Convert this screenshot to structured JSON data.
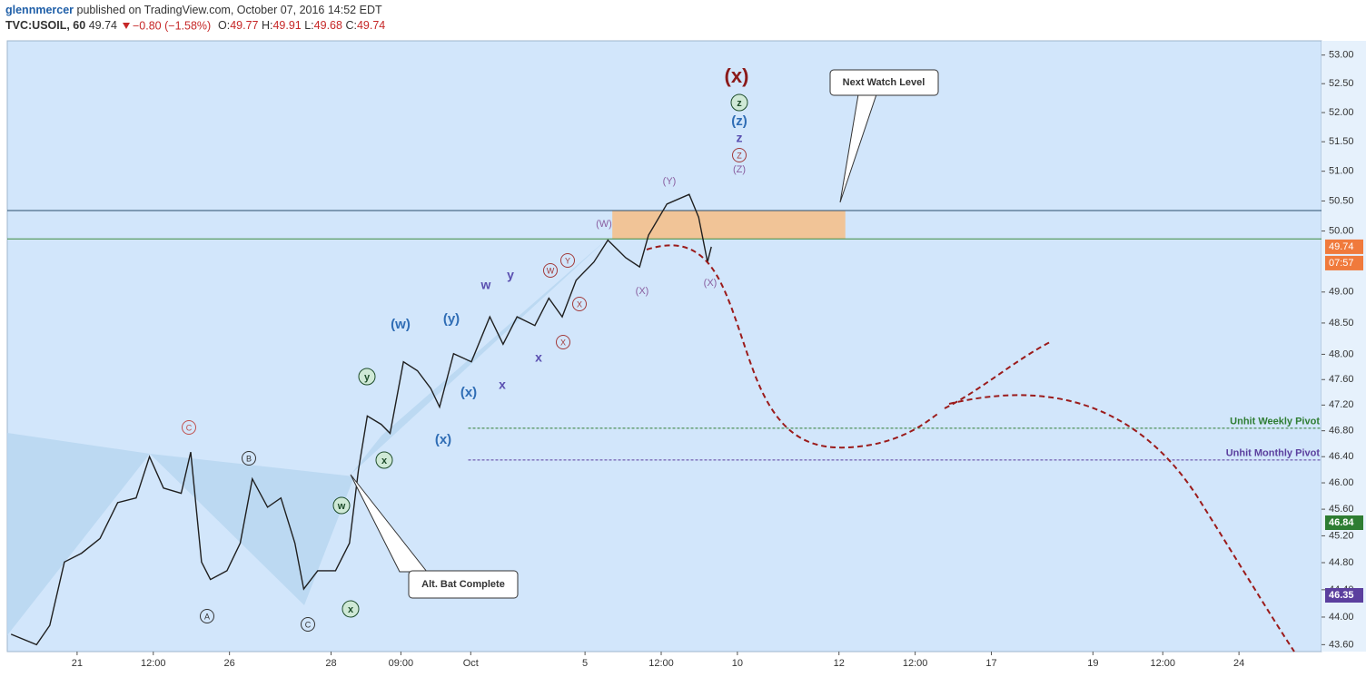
{
  "header": {
    "author": "glennmercer",
    "published": "published on TradingView.com, October 07, 2016 14:52 EDT",
    "symbol": "TVC:USOIL, 60",
    "last": "49.74",
    "change": "−0.80 (−1.58%)",
    "ohlc": [
      {
        "label": "O:",
        "value": "49.77"
      },
      {
        "label": "H:",
        "value": "49.91"
      },
      {
        "label": "L:",
        "value": "49.68"
      },
      {
        "label": "C:",
        "value": "49.74"
      }
    ]
  },
  "chart_data": {
    "type": "line",
    "log_scale": true,
    "color": "#1f1f1f",
    "x": [
      0.6,
      4.6,
      6.7,
      9,
      11.7,
      14.6,
      17.4,
      20.3,
      22.4,
      24.6,
      27.4,
      28.9,
      30.6,
      32,
      34.6,
      36.7,
      38.6,
      41,
      43.1,
      45.3,
      46.7,
      48.9,
      51.7,
      53.9,
      55.3,
      56.7,
      58.9,
      60.3,
      62.4,
      64.6,
      66.7,
      68.1,
      70.3,
      73.1,
      76,
      78.1,
      80.3,
      83.1,
      85.3,
      87.4,
      89.6,
      92.4,
      94.6,
      97.4,
      99.6,
      101,
      103.9,
      107.4,
      108.9,
      110.3,
      110.9
    ],
    "values": [
      43.75,
      43.6,
      43.88,
      44.81,
      44.94,
      45.16,
      45.7,
      45.77,
      46.4,
      45.92,
      45.84,
      46.47,
      44.81,
      44.55,
      44.68,
      45.09,
      46.06,
      45.63,
      45.77,
      45.09,
      44.41,
      44.68,
      44.68,
      45.09,
      46.19,
      47.03,
      46.9,
      46.76,
      47.88,
      47.74,
      47.46,
      47.17,
      48.01,
      47.88,
      48.6,
      48.16,
      48.6,
      48.46,
      48.9,
      48.6,
      49.19,
      49.49,
      49.85,
      49.56,
      49.41,
      49.93,
      50.45,
      50.61,
      50.23,
      49.49,
      49.74
    ],
    "xlim": [
      0,
      207
    ],
    "ylim": [
      43.5,
      53.25
    ],
    "xticks": [
      {
        "value": 11,
        "label": "21"
      },
      {
        "value": 23,
        "label": "12:00"
      },
      {
        "value": 35,
        "label": "26"
      },
      {
        "value": 51,
        "label": "28"
      },
      {
        "value": 62,
        "label": "09:00"
      },
      {
        "value": 73,
        "label": "Oct"
      },
      {
        "value": 91,
        "label": "5"
      },
      {
        "value": 103,
        "label": "12:00"
      },
      {
        "value": 115,
        "label": "10"
      },
      {
        "value": 131,
        "label": "12"
      },
      {
        "value": 143,
        "label": "12:00"
      },
      {
        "value": 155,
        "label": "17"
      },
      {
        "value": 171,
        "label": "19"
      },
      {
        "value": 182,
        "label": "12:00"
      },
      {
        "value": 194,
        "label": "24"
      }
    ],
    "yticks": [
      {
        "value": 53,
        "label": "53.00"
      },
      {
        "value": 52.5,
        "label": "52.50"
      },
      {
        "value": 52,
        "label": "52.00"
      },
      {
        "value": 51.5,
        "label": "51.50"
      },
      {
        "value": 51,
        "label": "51.00"
      },
      {
        "value": 50.5,
        "label": "50.50"
      },
      {
        "value": 50,
        "label": "50.00"
      },
      {
        "value": 49,
        "label": "49.00"
      },
      {
        "value": 48.5,
        "label": "48.50"
      },
      {
        "value": 48,
        "label": "48.00"
      },
      {
        "value": 47.6,
        "label": "47.60"
      },
      {
        "value": 47.2,
        "label": "47.20"
      },
      {
        "value": 46.8,
        "label": "46.80"
      },
      {
        "value": 46.4,
        "label": "46.40"
      },
      {
        "value": 46,
        "label": "46.00"
      },
      {
        "value": 45.6,
        "label": "45.60"
      },
      {
        "value": 45.2,
        "label": "45.20"
      },
      {
        "value": 44.8,
        "label": "44.80"
      },
      {
        "value": 44.4,
        "label": "44.40"
      },
      {
        "value": 44,
        "label": "44.00"
      },
      {
        "value": 43.6,
        "label": "43.60"
      }
    ],
    "hlines": [
      {
        "value": 50.34,
        "color": "#2a4d6e"
      },
      {
        "value": 49.87,
        "color": "#3c8a3c"
      }
    ],
    "zone": {
      "from": 49.87,
      "to": 50.34,
      "x": [
        95.3,
        132
      ],
      "color": "#f4c08c"
    },
    "levels": [
      {
        "label": "Unhit Weekly Pivot",
        "value": 46.84,
        "x_start": 72.6,
        "color": "#2e7d32"
      },
      {
        "label": "Unhit Monthly Pivot",
        "value": 46.35,
        "x_start": 72.6,
        "color": "#5b3f9e"
      }
    ],
    "price_tag": {
      "value": 49.74,
      "countdown": "07:57",
      "color": "#f07a3c"
    },
    "callouts": [
      "Next Watch Level",
      "Alt. Bat Complete"
    ],
    "annotations": [
      "(x)",
      "z",
      "(z)",
      "z",
      "Z",
      "(Z)",
      "(Y)",
      "(W)",
      "(X)",
      "(X)",
      "W",
      "Y",
      "X",
      "X",
      "w",
      "y",
      "x",
      "x",
      "(w)",
      "(y)",
      "(x)",
      "(x)",
      "y",
      "x",
      "w",
      "x",
      "C",
      "B",
      "A",
      "C"
    ]
  }
}
